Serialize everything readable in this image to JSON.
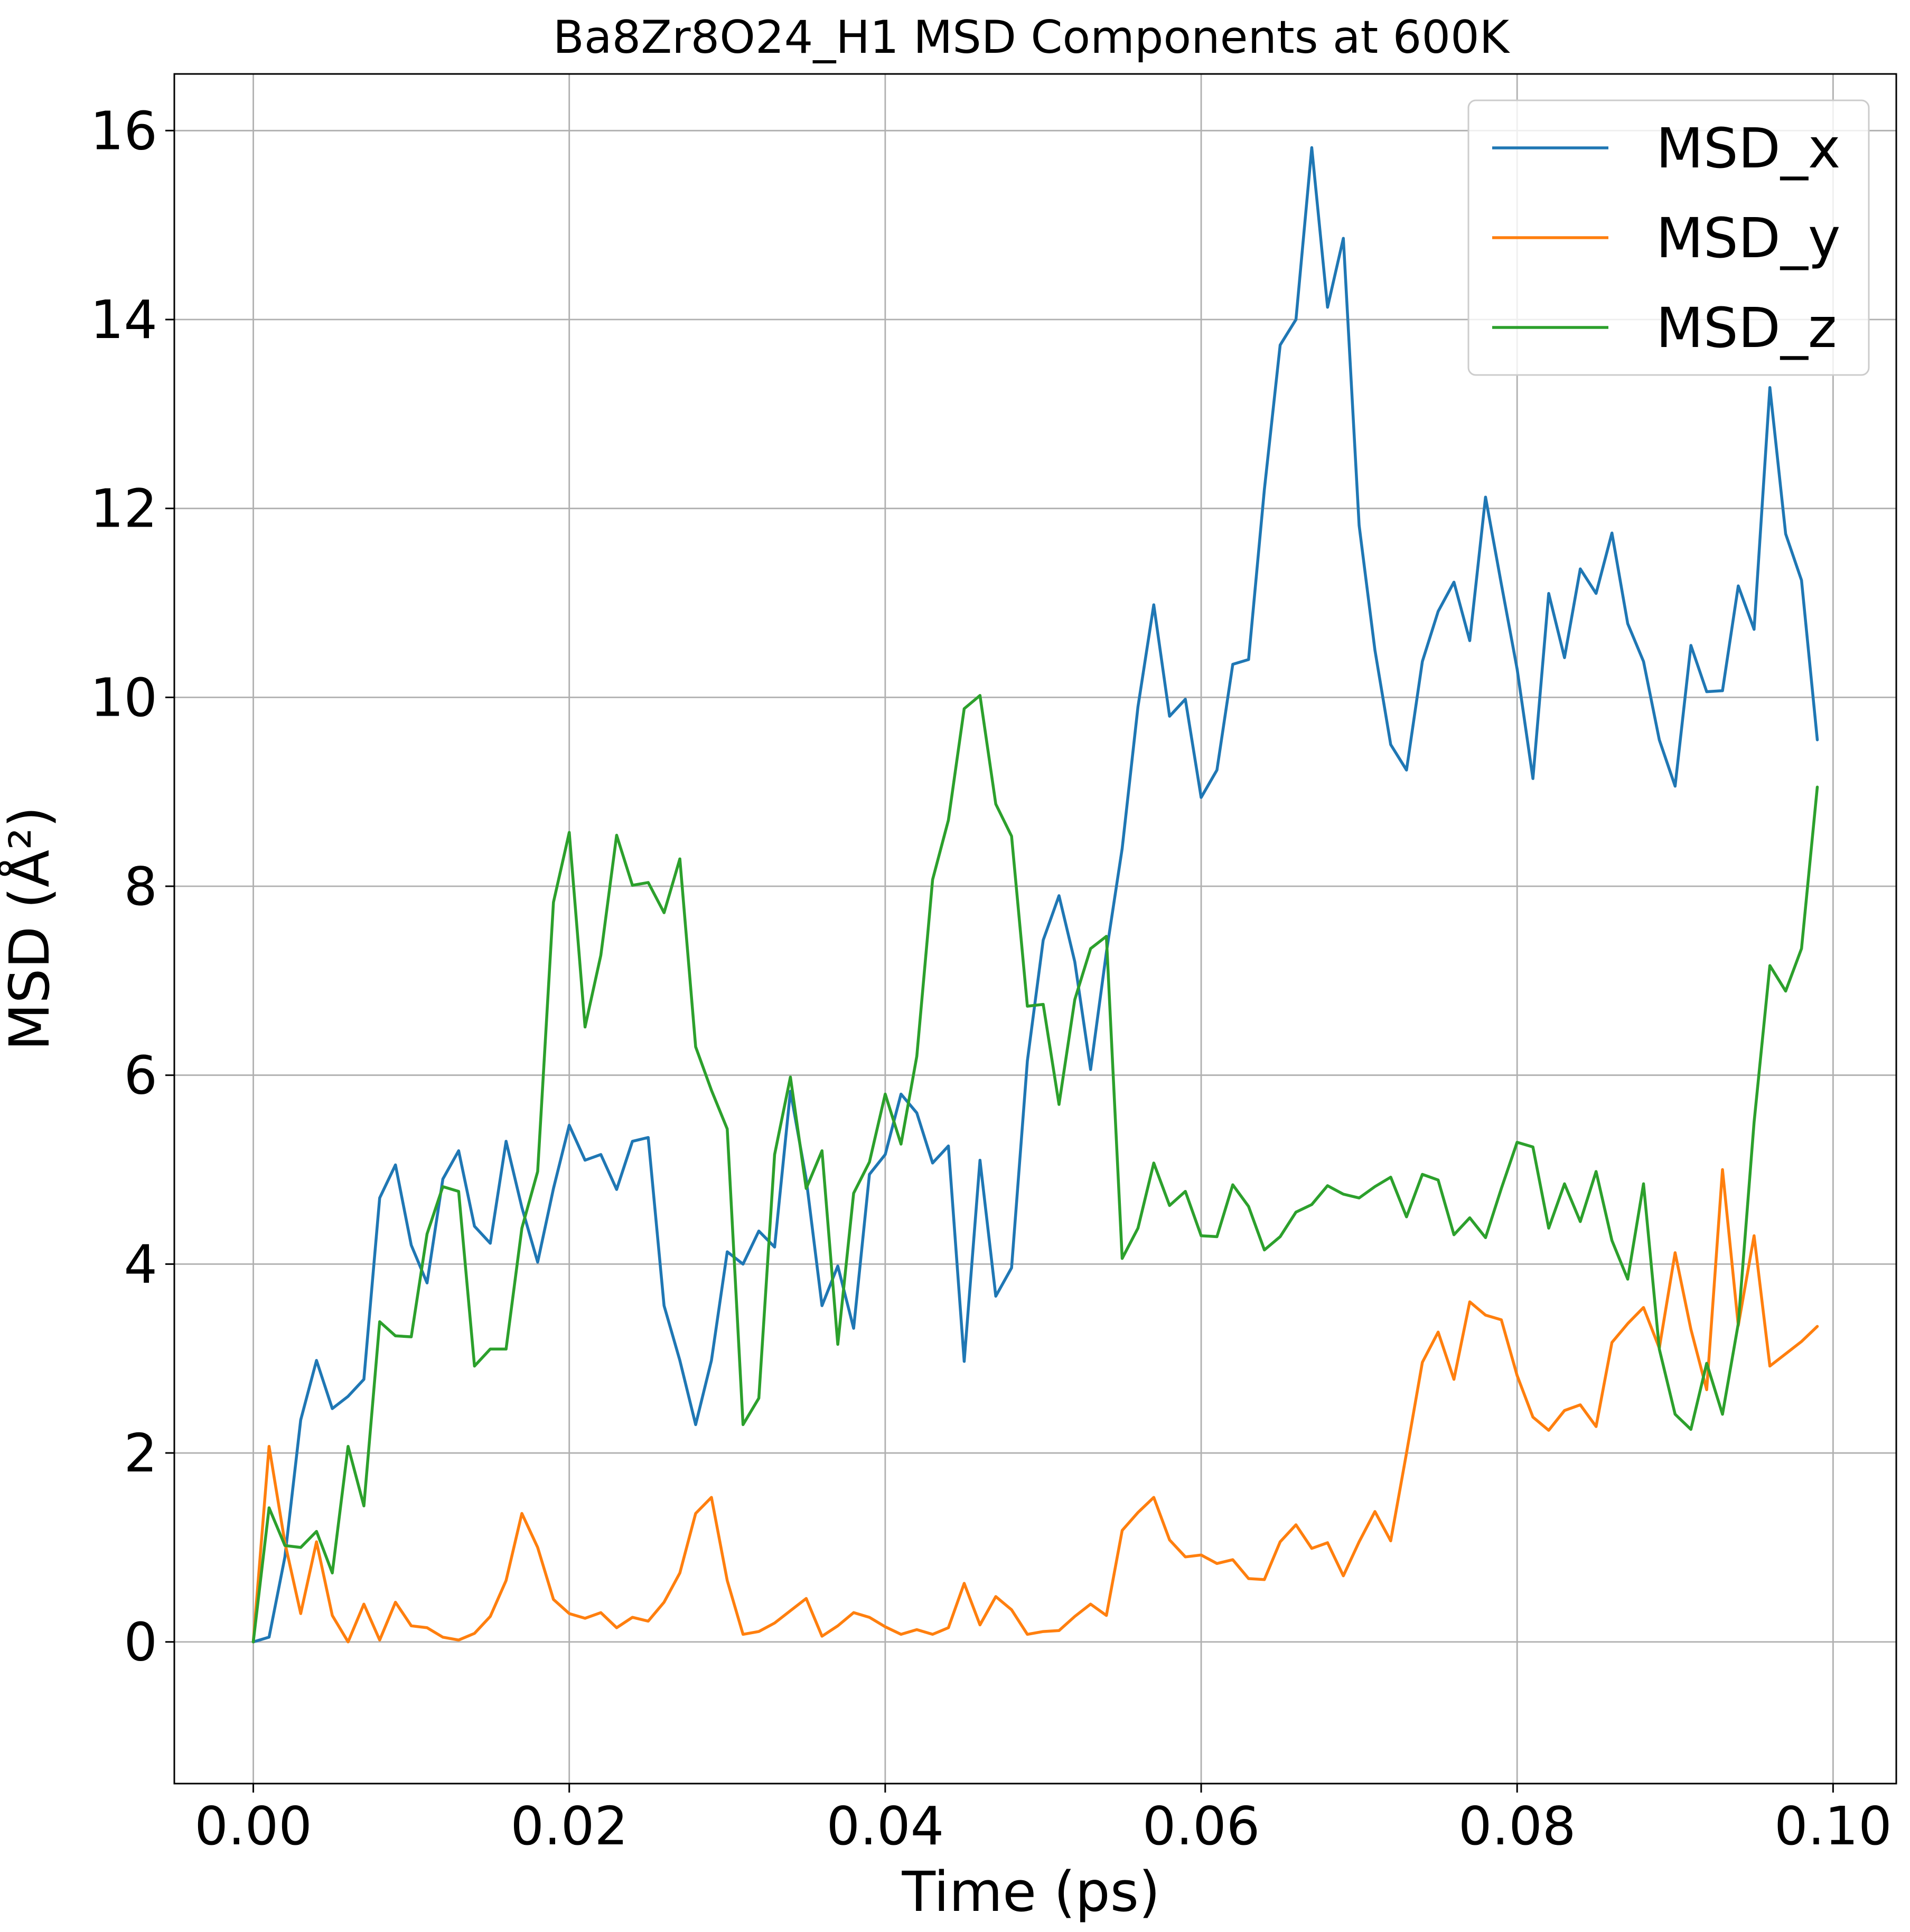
{
  "chart_data": {
    "type": "line",
    "title": "Ba8Zr8O24_H1 MSD Components at 600K",
    "xlabel": "Time (ps)",
    "ylabel": "MSD (Å²)",
    "xlim": [
      -0.005,
      0.104
    ],
    "ylim": [
      -1.5,
      16.6
    ],
    "x_ticks": [
      0.0,
      0.02,
      0.04,
      0.06,
      0.08,
      0.1
    ],
    "x_tick_labels": [
      "0.00",
      "0.02",
      "0.04",
      "0.06",
      "0.08",
      "0.10"
    ],
    "y_ticks": [
      0,
      2,
      4,
      6,
      8,
      10,
      12,
      14,
      16
    ],
    "y_tick_labels": [
      "0",
      "2",
      "4",
      "6",
      "8",
      "10",
      "12",
      "14",
      "16"
    ],
    "grid": true,
    "legend_position": "upper right",
    "x_start": 0.0,
    "x_step": 0.001,
    "series": [
      {
        "name": "MSD_x",
        "color": "#1f77b4",
        "values": [
          0.0,
          0.05,
          0.9,
          2.35,
          2.98,
          2.47,
          2.6,
          2.78,
          4.7,
          5.05,
          4.2,
          3.8,
          4.9,
          5.2,
          4.4,
          4.22,
          5.3,
          4.6,
          4.02,
          4.8,
          5.47,
          5.1,
          5.16,
          4.79,
          5.3,
          5.34,
          3.56,
          2.98,
          2.3,
          2.98,
          4.13,
          4.0,
          4.35,
          4.18,
          5.83,
          4.9,
          3.56,
          3.98,
          3.32,
          4.95,
          5.16,
          5.8,
          5.6,
          5.07,
          5.25,
          2.97,
          5.1,
          3.66,
          3.96,
          6.15,
          7.43,
          7.9,
          7.2,
          6.06,
          7.3,
          8.4,
          9.9,
          10.98,
          9.8,
          9.98,
          8.94,
          9.23,
          10.35,
          10.4,
          12.2,
          13.73,
          14.0,
          15.82,
          14.13,
          14.86,
          11.82,
          10.5,
          9.5,
          9.23,
          10.38,
          10.91,
          11.22,
          10.6,
          12.12,
          11.2,
          10.3,
          9.14,
          11.1,
          10.42,
          11.36,
          11.1,
          11.74,
          10.78,
          10.38,
          9.55,
          9.06,
          10.55,
          10.06,
          10.07,
          11.18,
          10.72,
          13.28,
          11.73,
          11.24,
          9.55
        ]
      },
      {
        "name": "MSD_y",
        "color": "#ff7f0e",
        "values": [
          0.0,
          2.07,
          1.05,
          0.3,
          1.06,
          0.28,
          0.0,
          0.4,
          0.02,
          0.42,
          0.17,
          0.15,
          0.05,
          0.02,
          0.09,
          0.27,
          0.65,
          1.36,
          1.0,
          0.45,
          0.3,
          0.25,
          0.31,
          0.15,
          0.26,
          0.22,
          0.42,
          0.73,
          1.36,
          1.53,
          0.65,
          0.08,
          0.11,
          0.2,
          0.33,
          0.46,
          0.06,
          0.17,
          0.31,
          0.26,
          0.16,
          0.08,
          0.13,
          0.08,
          0.15,
          0.62,
          0.18,
          0.48,
          0.34,
          0.08,
          0.11,
          0.12,
          0.27,
          0.4,
          0.28,
          1.18,
          1.37,
          1.53,
          1.08,
          0.9,
          0.92,
          0.83,
          0.87,
          0.67,
          0.66,
          1.06,
          1.24,
          0.99,
          1.05,
          0.7,
          1.06,
          1.38,
          1.07,
          2.0,
          2.96,
          3.28,
          2.78,
          3.6,
          3.46,
          3.41,
          2.82,
          2.38,
          2.24,
          2.45,
          2.51,
          2.28,
          3.17,
          3.37,
          3.54,
          3.11,
          4.12,
          3.31,
          2.67,
          5.0,
          3.35,
          4.3,
          2.92,
          3.05,
          3.18,
          3.34
        ]
      },
      {
        "name": "MSD_z",
        "color": "#2ca02c",
        "values": [
          0.0,
          1.42,
          1.02,
          1.0,
          1.17,
          0.73,
          2.07,
          1.44,
          3.39,
          3.24,
          3.23,
          4.32,
          4.82,
          4.77,
          2.92,
          3.1,
          3.1,
          4.38,
          4.98,
          7.83,
          8.57,
          6.51,
          7.27,
          8.54,
          8.01,
          8.04,
          7.72,
          8.29,
          6.3,
          5.84,
          5.43,
          2.3,
          2.58,
          5.16,
          5.98,
          4.8,
          5.2,
          3.15,
          4.75,
          5.08,
          5.8,
          5.27,
          6.2,
          8.07,
          8.7,
          9.88,
          10.02,
          8.87,
          8.53,
          6.73,
          6.75,
          5.69,
          6.8,
          7.34,
          7.47,
          4.06,
          4.38,
          5.07,
          4.62,
          4.77,
          4.3,
          4.29,
          4.84,
          4.61,
          4.15,
          4.29,
          4.55,
          4.63,
          4.83,
          4.74,
          4.7,
          4.82,
          4.92,
          4.5,
          4.95,
          4.89,
          4.31,
          4.49,
          4.28,
          4.8,
          5.29,
          5.24,
          4.38,
          4.85,
          4.45,
          4.98,
          4.25,
          3.84,
          4.85,
          3.1,
          2.41,
          2.25,
          2.95,
          2.41,
          3.37,
          5.5,
          7.16,
          6.89,
          7.34,
          9.05
        ]
      }
    ]
  }
}
